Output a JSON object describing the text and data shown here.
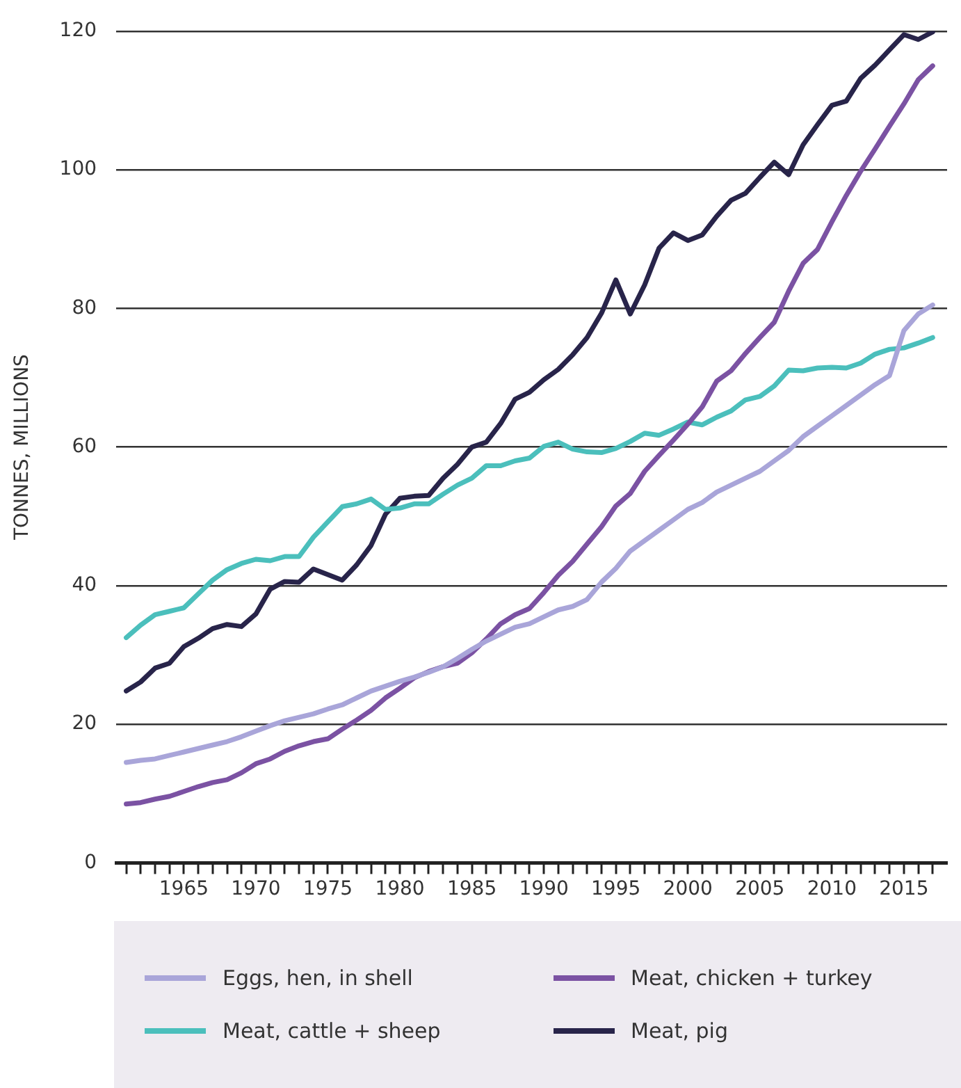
{
  "chart_data": {
    "type": "line",
    "ylabel": "TONNES, MILLIONS",
    "xlim": [
      1960.3,
      2018
    ],
    "ylim": [
      0,
      120
    ],
    "yticks": [
      0,
      20,
      40,
      60,
      80,
      100,
      120
    ],
    "xticks": [
      {
        "value": 1961,
        "label": null
      },
      {
        "value": 1962,
        "label": null
      },
      {
        "value": 1963,
        "label": null
      },
      {
        "value": 1964,
        "label": null
      },
      1965,
      {
        "value": 1966,
        "label": null
      },
      {
        "value": 1967,
        "label": null
      },
      {
        "value": 1968,
        "label": null
      },
      {
        "value": 1969,
        "label": null
      },
      1970,
      {
        "value": 1971,
        "label": null
      },
      {
        "value": 1972,
        "label": null
      },
      {
        "value": 1973,
        "label": null
      },
      {
        "value": 1974,
        "label": null
      },
      1975,
      {
        "value": 1976,
        "label": null
      },
      {
        "value": 1977,
        "label": null
      },
      {
        "value": 1978,
        "label": null
      },
      {
        "value": 1979,
        "label": null
      },
      1980,
      {
        "value": 1981,
        "label": null
      },
      {
        "value": 1982,
        "label": null
      },
      {
        "value": 1983,
        "label": null
      },
      {
        "value": 1984,
        "label": null
      },
      1985,
      {
        "value": 1986,
        "label": null
      },
      {
        "value": 1987,
        "label": null
      },
      {
        "value": 1988,
        "label": null
      },
      {
        "value": 1989,
        "label": null
      },
      1990,
      {
        "value": 1991,
        "label": null
      },
      {
        "value": 1992,
        "label": null
      },
      {
        "value": 1993,
        "label": null
      },
      {
        "value": 1994,
        "label": null
      },
      1995,
      {
        "value": 1996,
        "label": null
      },
      {
        "value": 1997,
        "label": null
      },
      {
        "value": 1998,
        "label": null
      },
      {
        "value": 1999,
        "label": null
      },
      2000,
      {
        "value": 2001,
        "label": null
      },
      {
        "value": 2002,
        "label": null
      },
      {
        "value": 2003,
        "label": null
      },
      {
        "value": 2004,
        "label": null
      },
      2005,
      {
        "value": 2006,
        "label": null
      },
      {
        "value": 2007,
        "label": null
      },
      {
        "value": 2008,
        "label": null
      },
      {
        "value": 2009,
        "label": null
      },
      2010,
      {
        "value": 2011,
        "label": null
      },
      {
        "value": 2012,
        "label": null
      },
      {
        "value": 2013,
        "label": null
      },
      {
        "value": 2014,
        "label": null
      },
      2015,
      {
        "value": 2016,
        "label": null
      },
      {
        "value": 2017,
        "label": null
      }
    ],
    "x": [
      1961,
      1962,
      1963,
      1964,
      1965,
      1966,
      1967,
      1968,
      1969,
      1970,
      1971,
      1972,
      1973,
      1974,
      1975,
      1976,
      1977,
      1978,
      1979,
      1980,
      1981,
      1982,
      1983,
      1984,
      1985,
      1986,
      1987,
      1988,
      1989,
      1990,
      1991,
      1992,
      1993,
      1994,
      1995,
      1996,
      1997,
      1998,
      1999,
      2000,
      2001,
      2002,
      2003,
      2004,
      2005,
      2006,
      2007,
      2008,
      2009,
      2010,
      2011,
      2012,
      2013,
      2014,
      2015,
      2016,
      2017
    ],
    "grid": "y",
    "legend": "bottom",
    "marker": "none",
    "line_style": "solid",
    "series": [
      {
        "name": "Eggs, hen, in shell",
        "color": "#a9a5d9",
        "values": [
          14.5,
          14.8,
          15,
          15.5,
          16,
          16.5,
          17,
          17.5,
          18.2,
          19,
          19.8,
          20.5,
          21,
          21.5,
          22.2,
          22.8,
          23.8,
          24.8,
          25.5,
          26.2,
          26.8,
          27.5,
          28.3,
          29.5,
          30.8,
          32,
          33,
          34,
          34.5,
          35.5,
          36.5,
          37,
          38,
          40.5,
          42.5,
          45,
          46.5,
          48,
          49.5,
          51,
          52,
          53.5,
          54.5,
          55.5,
          56.5,
          58,
          59.5,
          61.5,
          63,
          64.5,
          66,
          67.5,
          69,
          70.3,
          76.8,
          79.2,
          80.5
        ]
      },
      {
        "name": "Meat, chicken + turkey",
        "color": "#7b52a3",
        "values": [
          8.5,
          8.7,
          9.2,
          9.6,
          10.3,
          11,
          11.6,
          12,
          13,
          14.3,
          15,
          16.1,
          16.9,
          17.5,
          17.9,
          19.3,
          20.6,
          22,
          23.8,
          25.2,
          26.7,
          27.6,
          28.3,
          28.8,
          30.3,
          32.3,
          34.5,
          35.8,
          36.7,
          39,
          41.5,
          43.5,
          46,
          48.5,
          51.5,
          53.3,
          56.5,
          58.8,
          61,
          63.3,
          65.8,
          69.5,
          71,
          73.5,
          75.8,
          78,
          82.5,
          86.5,
          88.5,
          92.5,
          96.3,
          99.8,
          103,
          106.3,
          109.5,
          113,
          115
        ]
      },
      {
        "name": "Meat, cattle + sheep",
        "color": "#4bbfbc",
        "values": [
          32.5,
          34.3,
          35.8,
          36.3,
          36.8,
          38.8,
          40.8,
          42.3,
          43.2,
          43.8,
          43.6,
          44.2,
          44.2,
          47,
          49.2,
          51.4,
          51.8,
          52.5,
          51,
          51.2,
          51.8,
          51.8,
          53.2,
          54.5,
          55.5,
          57.3,
          57.3,
          58,
          58.4,
          60.1,
          60.7,
          59.7,
          59.3,
          59.2,
          59.8,
          60.8,
          62,
          61.7,
          62.6,
          63.6,
          63.2,
          64.3,
          65.2,
          66.8,
          67.3,
          68.8,
          71.1,
          71,
          71.4,
          71.5,
          71.4,
          72.1,
          73.4,
          74.1,
          74.3,
          75,
          75.8
        ]
      },
      {
        "name": "Meat, pig",
        "color": "#28244a",
        "values": [
          24.8,
          26.1,
          28.1,
          28.8,
          31.2,
          32.4,
          33.8,
          34.4,
          34.1,
          35.9,
          39.5,
          40.6,
          40.5,
          42.4,
          41.6,
          40.8,
          43,
          45.8,
          50.3,
          52.6,
          52.9,
          53,
          55.5,
          57.5,
          60,
          60.7,
          63.4,
          66.9,
          67.9,
          69.7,
          71.2,
          73.3,
          75.8,
          79.3,
          84.1,
          79.2,
          83.4,
          88.7,
          90.9,
          89.8,
          90.6,
          93.3,
          95.6,
          96.6,
          98.9,
          101.1,
          99.3,
          103.6,
          106.5,
          109.3,
          109.9,
          113.2,
          115.1,
          117.3,
          119.5,
          118.8,
          119.9
        ]
      }
    ]
  }
}
